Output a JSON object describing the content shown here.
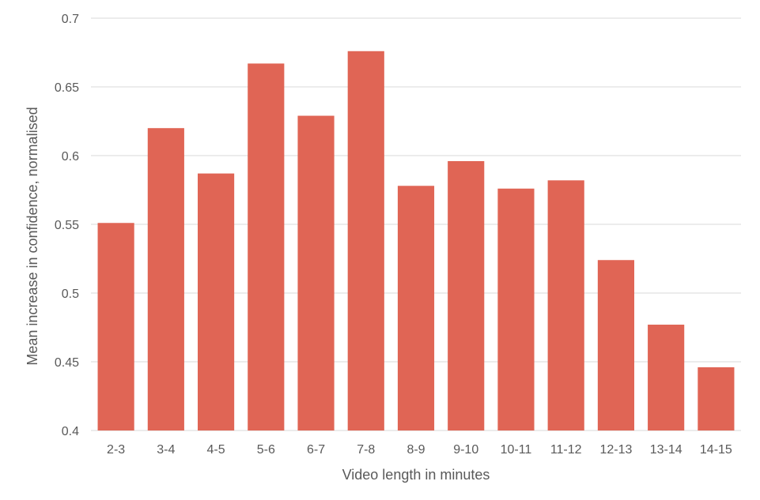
{
  "chart_data": {
    "type": "bar",
    "title": "",
    "xlabel": "Video length in minutes",
    "ylabel": "Mean increase in confidence, normalised",
    "categories": [
      "2-3",
      "3-4",
      "4-5",
      "5-6",
      "6-7",
      "7-8",
      "8-9",
      "9-10",
      "10-11",
      "11-12",
      "12-13",
      "13-14",
      "14-15"
    ],
    "values": [
      0.551,
      0.62,
      0.587,
      0.667,
      0.629,
      0.676,
      0.578,
      0.596,
      0.576,
      0.582,
      0.524,
      0.477,
      0.446
    ],
    "ylim": [
      0.4,
      0.7
    ],
    "yticks": [
      "0.4",
      "0.45",
      "0.5",
      "0.55",
      "0.6",
      "0.65",
      "0.7"
    ],
    "grid": true,
    "bar_color": "#e06555",
    "grid_color": "#d9d9d9",
    "text_color": "#595959"
  }
}
